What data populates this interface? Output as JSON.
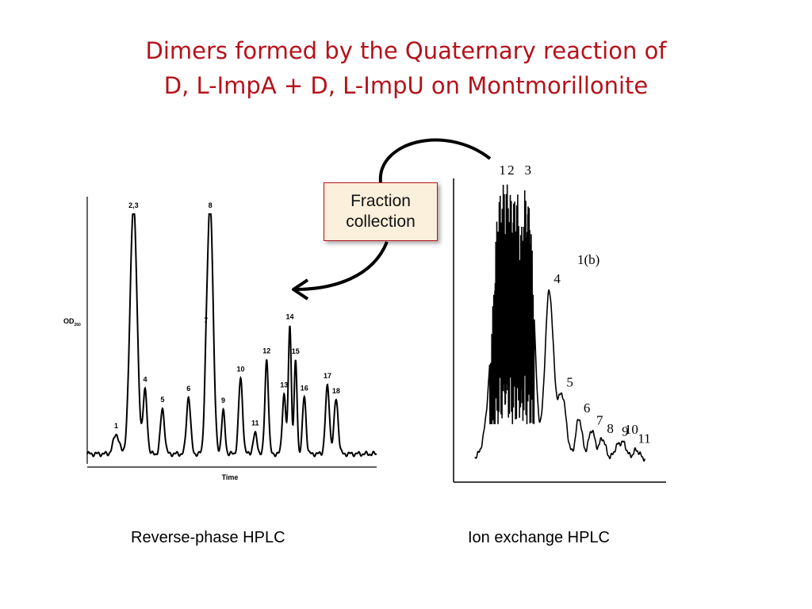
{
  "title": {
    "line1": "Dimers formed by the Quaternary reaction of",
    "line2": "D, L-ImpA + D, L-ImpU on Montmorillonite"
  },
  "fraction_box": {
    "line1": "Fraction",
    "line2": "collection"
  },
  "captions": {
    "left": "Reverse-phase HPLC",
    "right": "Ion exchange HPLC"
  },
  "colors": {
    "title": "#b5121b",
    "box_fill": "#fbf0dc",
    "box_border": "#b5121b",
    "trace": "#000000"
  },
  "chart_data": [
    {
      "type": "line",
      "title": "",
      "xlabel": "Time",
      "ylabel": "OD260",
      "ylabel_main": "OD",
      "ylabel_sub": "260",
      "xlim": [
        0,
        100
      ],
      "ylim": [
        0,
        100
      ],
      "baseline": 4,
      "peaks": [
        {
          "label": "1",
          "x": 10,
          "height": 8,
          "width": 1.0
        },
        {
          "label": "2,3",
          "x": 16,
          "height": 100,
          "width": 1.2,
          "clipped": true
        },
        {
          "label": "4",
          "x": 20,
          "height": 25,
          "width": 0.7
        },
        {
          "label": "5",
          "x": 26,
          "height": 18,
          "width": 0.7
        },
        {
          "label": "6",
          "x": 35,
          "height": 23,
          "width": 0.7
        },
        {
          "label": "7",
          "x": 41,
          "height": 17,
          "width": 0.6
        },
        {
          "label": "8",
          "x": 42.5,
          "height": 100,
          "width": 1.0,
          "clipped": true
        },
        {
          "label": "9",
          "x": 47,
          "height": 17,
          "width": 0.6
        },
        {
          "label": "10",
          "x": 53,
          "height": 30,
          "width": 0.7
        },
        {
          "label": "11",
          "x": 58,
          "height": 8,
          "width": 0.7
        },
        {
          "label": "12",
          "x": 62,
          "height": 38,
          "width": 0.6
        },
        {
          "label": "13",
          "x": 68,
          "height": 24,
          "width": 0.6
        },
        {
          "label": "14",
          "x": 70,
          "height": 52,
          "width": 0.5
        },
        {
          "label": "15",
          "x": 72,
          "height": 37,
          "width": 0.5
        },
        {
          "label": "16",
          "x": 75,
          "height": 23,
          "width": 0.6
        },
        {
          "label": "17",
          "x": 83,
          "height": 27,
          "width": 0.7
        },
        {
          "label": "18",
          "x": 86,
          "height": 22,
          "width": 0.7
        }
      ]
    },
    {
      "type": "line",
      "title": "",
      "annotation": "1(b)",
      "xlabel": "",
      "ylabel": "",
      "xlim": [
        0,
        100
      ],
      "ylim": [
        0,
        100
      ],
      "baseline": 4,
      "peaks": [
        {
          "label": "1",
          "x": 23,
          "height": 100,
          "width": 4.0,
          "clipped": true
        },
        {
          "label": "2",
          "x": 27,
          "height": 100,
          "width": 3.0,
          "clipped": true
        },
        {
          "label": "3",
          "x": 35,
          "height": 100,
          "width": 2.5,
          "clipped": true
        },
        {
          "label": "4",
          "x": 45,
          "height": 58,
          "width": 2.0
        },
        {
          "label": "5",
          "x": 51,
          "height": 22,
          "width": 2.0
        },
        {
          "label": "6",
          "x": 59,
          "height": 14,
          "width": 1.5
        },
        {
          "label": "7",
          "x": 65,
          "height": 10,
          "width": 1.5
        },
        {
          "label": "8",
          "x": 70,
          "height": 7,
          "width": 1.5
        },
        {
          "label": "9",
          "x": 77,
          "height": 4,
          "width": 1.5
        },
        {
          "label": "10",
          "x": 80,
          "height": 5,
          "width": 1.5
        },
        {
          "label": "11",
          "x": 86,
          "height": 3,
          "width": 1.5
        }
      ]
    }
  ]
}
